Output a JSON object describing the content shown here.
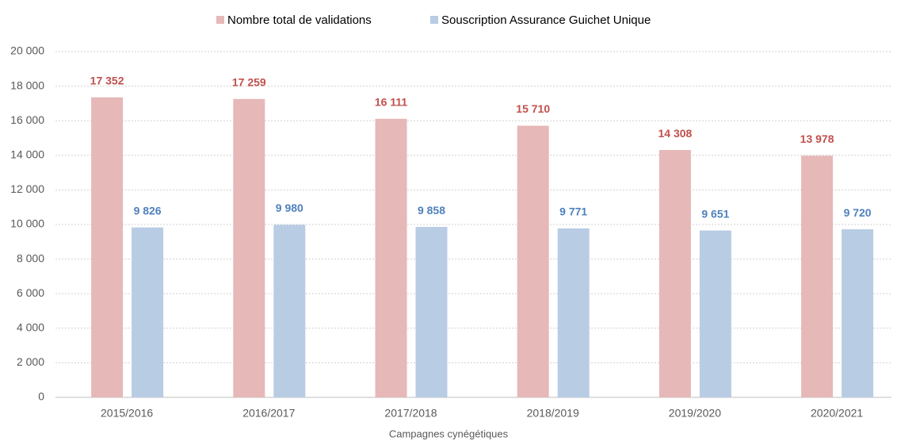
{
  "chart_data": {
    "type": "bar",
    "x_label": "Campagnes cynégétiques",
    "categories": [
      "2015/2016",
      "2016/2017",
      "2017/2018",
      "2018/2019",
      "2019/2020",
      "2020/2021"
    ],
    "series": [
      {
        "name": "Nombre total de validations",
        "color": "#e6b8b7",
        "label_color": "#c0504d",
        "values": [
          17352,
          17259,
          16111,
          15710,
          14308,
          13978
        ],
        "value_labels": [
          "17 352",
          "17 259",
          "16 111",
          "15 710",
          "14 308",
          "13 978"
        ]
      },
      {
        "name": "Souscription Assurance Guichet Unique",
        "color": "#b8cce4",
        "label_color": "#4f81bd",
        "values": [
          9826,
          9980,
          9858,
          9771,
          9651,
          9720
        ],
        "value_labels": [
          "9 826",
          "9 980",
          "9 858",
          "9 771",
          "9 651",
          "9 720"
        ]
      }
    ],
    "ylim": [
      0,
      20000
    ],
    "yticks": [
      0,
      {
        "value": 2000,
        "label": "2 000"
      },
      {
        "value": 4000,
        "label": "4 000"
      },
      {
        "value": 6000,
        "label": "6 000"
      },
      {
        "value": 8000,
        "label": "8 000"
      },
      {
        "value": 10000,
        "label": "10 000"
      },
      {
        "value": 12000,
        "label": "12 000"
      },
      {
        "value": 14000,
        "label": "14 000"
      },
      {
        "value": 16000,
        "label": "16 000"
      },
      {
        "value": 18000,
        "label": "18 000"
      },
      {
        "value": 20000,
        "label": "20 000"
      }
    ],
    "grid": true,
    "legend": "top"
  }
}
